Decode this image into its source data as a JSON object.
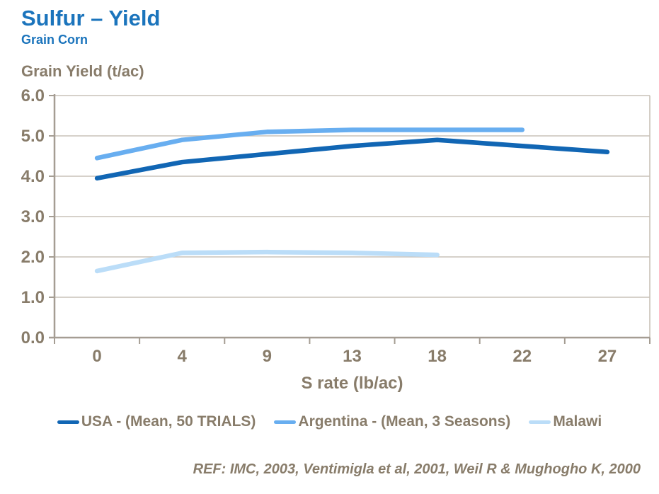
{
  "header": {
    "title": "Sulfur – Yield",
    "subtitle": "Grain Corn",
    "title_color": "#1B74BC"
  },
  "colors": {
    "text_brown": "#887C6A",
    "axis": "#A59D93",
    "gridline": "#C9C2B8",
    "background": "#FFFFFF"
  },
  "chart_data": {
    "type": "line",
    "xlabel": "S rate (lb/ac)",
    "ylabel": "Grain Yield (t/ac)",
    "categories": [
      "0",
      "4",
      "9",
      "13",
      "18",
      "22",
      "27"
    ],
    "y_ticks": [
      "0.0",
      "1.0",
      "2.0",
      "3.0",
      "4.0",
      "5.0",
      "6.0"
    ],
    "ylim": [
      0,
      6
    ],
    "grid": "horizontal-only",
    "legend_position": "bottom",
    "series": [
      {
        "name": "USA - (Mean, 50 TRIALS)",
        "color": "#1166B4",
        "values": [
          3.95,
          4.35,
          4.55,
          4.75,
          4.9,
          4.75,
          4.6
        ]
      },
      {
        "name": "Argentina - (Mean, 3 Seasons)",
        "color": "#68AEF0",
        "values": [
          4.45,
          4.9,
          5.1,
          5.15,
          5.15,
          5.15,
          null
        ]
      },
      {
        "name": "Malawi",
        "color": "#BBDDF8",
        "values": [
          1.65,
          2.1,
          2.12,
          2.1,
          2.05,
          null,
          null
        ]
      }
    ]
  },
  "footer": {
    "ref_text": "REF: IMC, 2003, Ventimigla et al, 2001, Weil R & Mughogho K, 2000"
  }
}
